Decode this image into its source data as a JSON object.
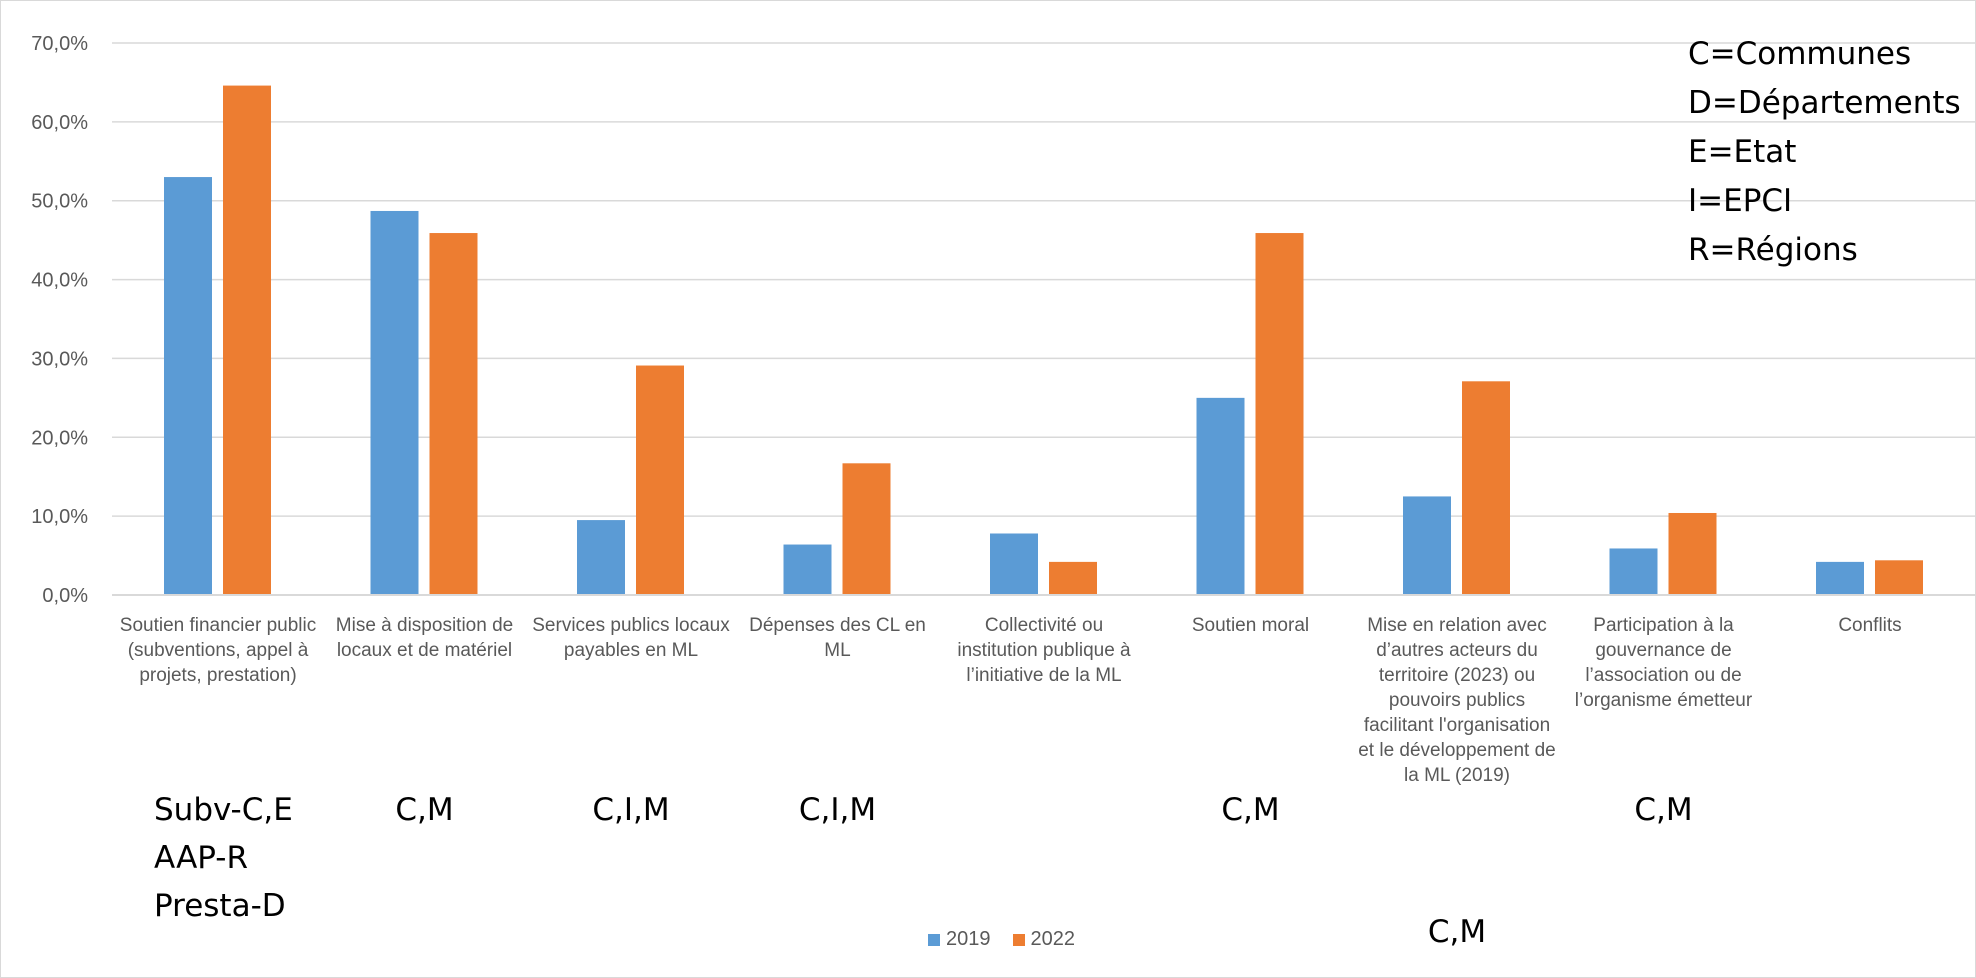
{
  "chart_data": {
    "type": "bar",
    "categories": [
      "Soutien financier public (subventions, appel à projets, prestation)",
      "Mise à disposition de locaux et de matériel",
      "Services publics locaux payables en ML",
      "Dépenses des CL en ML",
      "Collectivité ou institution publique à l’initiative de la ML",
      "Soutien moral",
      "Mise en relation avec d’autres acteurs du territoire (2023) ou pouvoirs publics facilitant l'organisation et le développement de la ML (2019)",
      "Participation à la gouvernance de l’association ou de l’organisme émetteur",
      "Conflits"
    ],
    "series": [
      {
        "name": "2019",
        "color": "#5b9bd5",
        "values": [
          53.0,
          48.7,
          9.5,
          6.4,
          7.8,
          25.0,
          12.5,
          5.9,
          4.2
        ]
      },
      {
        "name": "2022",
        "color": "#ed7d31",
        "values": [
          64.6,
          45.9,
          29.1,
          16.7,
          4.2,
          45.9,
          27.1,
          10.4,
          4.4
        ]
      }
    ],
    "yticks": [
      "0,0%",
      "10,0%",
      "20,0%",
      "30,0%",
      "40,0%",
      "50,0%",
      "60,0%",
      "70,0%"
    ],
    "ylim": [
      0,
      70
    ],
    "grid": true,
    "legend": "bottom",
    "annotations": [
      "Subv-C,E\nAAP-R\nPresta-D",
      "C,M",
      "C,I,M",
      "C,I,M",
      "",
      "C,M",
      "C,M",
      "C,M",
      ""
    ]
  },
  "key": {
    "lines": [
      "C=Communes",
      "D=Départements",
      "E=Etat",
      "I=EPCI",
      "R=Régions"
    ]
  }
}
